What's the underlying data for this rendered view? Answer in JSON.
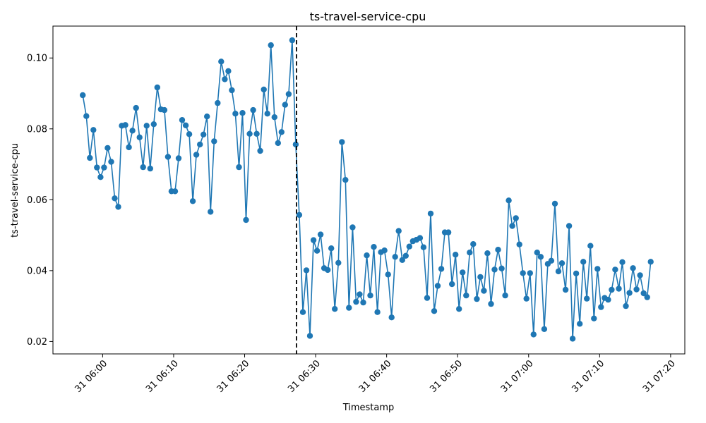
{
  "chart_data": {
    "type": "line",
    "title": "ts-travel-service-cpu",
    "xlabel": "Timestamp",
    "ylabel": "ts-travel-service-cpu",
    "x_unit": "minutes after 06:00 on day 31",
    "xlim": [
      -7,
      82
    ],
    "ylim": [
      0.0165,
      0.109
    ],
    "grid": false,
    "series_color": "#1f77b4",
    "vline_color": "#000000",
    "vline_x": 27.3,
    "x_ticks": [
      {
        "x": 0,
        "label": "31 06:00"
      },
      {
        "x": 10,
        "label": "31 06:10"
      },
      {
        "x": 20,
        "label": "31 06:20"
      },
      {
        "x": 30,
        "label": "31 06:30"
      },
      {
        "x": 40,
        "label": "31 06:40"
      },
      {
        "x": 50,
        "label": "31 06:50"
      },
      {
        "x": 60,
        "label": "31 07:00"
      },
      {
        "x": 70,
        "label": "31 07:10"
      },
      {
        "x": 80,
        "label": "31 07:20"
      }
    ],
    "y_ticks": [
      {
        "y": 0.02,
        "label": "0.02"
      },
      {
        "y": 0.04,
        "label": "0.04"
      },
      {
        "y": 0.06,
        "label": "0.06"
      },
      {
        "y": 0.08,
        "label": "0.08"
      },
      {
        "y": 0.1,
        "label": "0.10"
      }
    ],
    "series": [
      {
        "x0": -2.8,
        "dx": 0.5,
        "values": [
          0.0895,
          0.0836,
          0.0718,
          0.0797,
          0.0691,
          0.0664,
          0.0691,
          0.0746,
          0.0707,
          0.0604,
          0.058,
          0.0809,
          0.0811,
          0.0748,
          0.0795,
          0.0859,
          0.0776,
          0.0692,
          0.0809,
          0.0688,
          0.0813,
          0.0917,
          0.0855,
          0.0853,
          0.0721,
          0.0624,
          0.0624,
          0.0717,
          0.0825,
          0.081,
          0.0785,
          0.0596,
          0.0727,
          0.0756,
          0.0784,
          0.0835,
          0.0566,
          0.0765,
          0.0873,
          0.099,
          0.094,
          0.0963,
          0.0909,
          0.0843,
          0.0692,
          0.0845,
          0.0543,
          0.0786,
          0.0853,
          0.0786,
          0.0738,
          0.0911,
          0.0843,
          0.1036,
          0.0833,
          0.076,
          0.0791,
          0.0868,
          0.0898,
          0.105,
          0.0756,
          0.0557,
          0.0283,
          0.0401,
          0.0216,
          0.0486,
          0.0456,
          0.0502,
          0.0407,
          0.0402,
          0.0463,
          0.0292,
          0.0422,
          0.0763,
          0.0656,
          0.0295,
          0.0522,
          0.0312,
          0.0333,
          0.031,
          0.0443,
          0.033,
          0.0467,
          0.0283,
          0.0452,
          0.0457,
          0.0389,
          0.0268,
          0.0439,
          0.0512,
          0.043,
          0.0442,
          0.0468,
          0.0483,
          0.0487,
          0.0492,
          0.0466,
          0.0323,
          0.0561,
          0.0286,
          0.0357,
          0.0405,
          0.0508,
          0.0508,
          0.0362,
          0.0445,
          0.0292,
          0.0395,
          0.033,
          0.0451,
          0.0475,
          0.032,
          0.0382,
          0.0343,
          0.0449,
          0.0306,
          0.0403,
          0.0459,
          0.0406,
          0.033,
          0.0598,
          0.0526,
          0.0548,
          0.0474,
          0.0393,
          0.0321,
          0.0393,
          0.022,
          0.0451,
          0.0439,
          0.0235,
          0.0419,
          0.0428,
          0.0589,
          0.0398,
          0.0421,
          0.0346,
          0.0526,
          0.0208,
          0.0392,
          0.025,
          0.0425,
          0.0321,
          0.047,
          0.0265,
          0.0405,
          0.0297,
          0.0323,
          0.0318,
          0.0346,
          0.0403,
          0.0349,
          0.0424,
          0.03,
          0.0337,
          0.0407,
          0.0347,
          0.0387,
          0.0336,
          0.0325,
          0.0425
        ]
      }
    ]
  }
}
